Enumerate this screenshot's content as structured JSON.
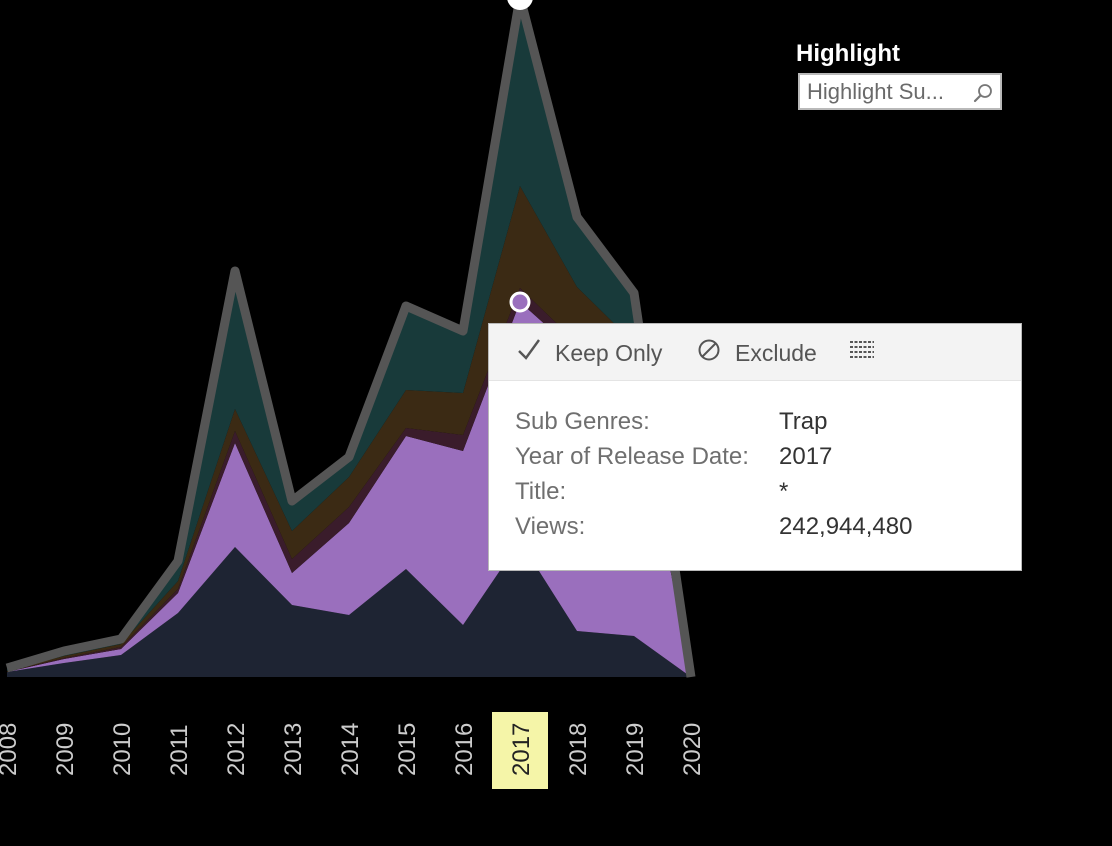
{
  "chart_data": {
    "type": "area",
    "stacked": true,
    "x": [
      "2008",
      "2009",
      "2010",
      "2011",
      "2012",
      "2013",
      "2014",
      "2015",
      "2016",
      "2017",
      "2018",
      "2019",
      "2020"
    ],
    "selected_x": "2017",
    "series": [
      {
        "key": "s1",
        "color": "#1e2433",
        "values": [
          5,
          14,
          22,
          64,
          130,
          72,
          62,
          108,
          52,
          136,
          46,
          41,
          0
        ]
      },
      {
        "key": "trap",
        "color": "#9a6fbd",
        "values": [
          0,
          4,
          6,
          20,
          104,
          32,
          92,
          133,
          174,
          239,
          278,
          255,
          0
        ]
      },
      {
        "key": "s3",
        "color": "#3a1c2b",
        "values": [
          0,
          1,
          2,
          4,
          12,
          14,
          16,
          8,
          16,
          14,
          10,
          8,
          0
        ]
      },
      {
        "key": "s4",
        "color": "#3b2a14",
        "values": [
          1,
          2,
          3,
          8,
          22,
          28,
          30,
          38,
          42,
          102,
          56,
          30,
          0
        ]
      },
      {
        "key": "s5",
        "color": "#183a3a",
        "values": [
          3,
          5,
          5,
          20,
          138,
          30,
          20,
          84,
          62,
          189,
          70,
          50,
          0
        ]
      }
    ],
    "totals_outline": {
      "color": "#555555"
    },
    "highlight_color": "#f5f5a8"
  },
  "highlight": {
    "title": "Highlight",
    "placeholder": "Highlight Su..."
  },
  "tooltip": {
    "keep_only": "Keep Only",
    "exclude": "Exclude",
    "rows": [
      {
        "label": "Sub Genres:",
        "value": "Trap"
      },
      {
        "label": "Year of Release Date:",
        "value": "2017"
      },
      {
        "label": "Title:",
        "value": "*"
      },
      {
        "label": "Views:",
        "value": "242,944,480"
      }
    ]
  }
}
